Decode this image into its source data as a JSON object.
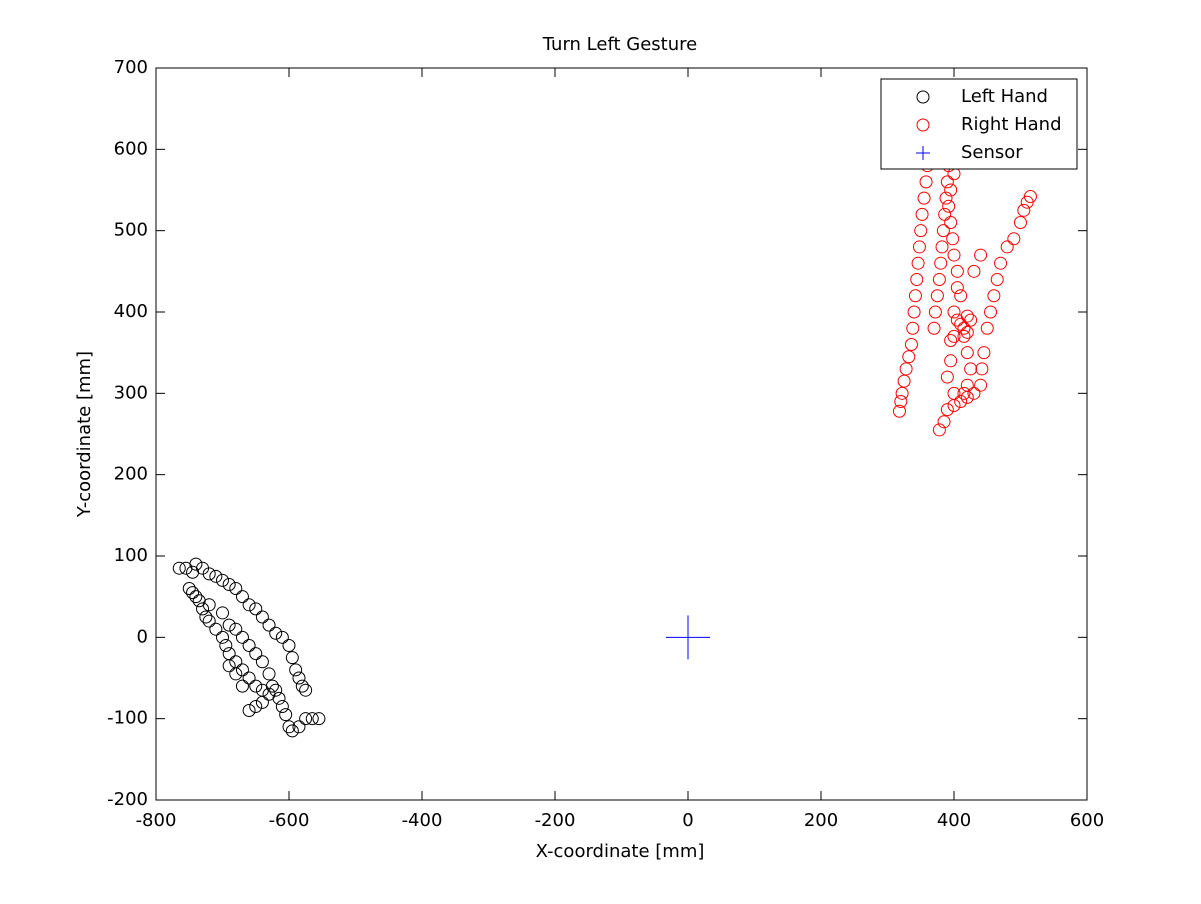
{
  "chart_data": {
    "type": "scatter",
    "title": "Turn Left Gesture",
    "x_label": "X-coordinate [mm]",
    "y_label": "Y-coordinate [mm]",
    "xlim": [
      -800,
      600
    ],
    "ylim": [
      -200,
      700
    ],
    "xticks": [
      -800,
      -600,
      -400,
      -200,
      0,
      200,
      400,
      600
    ],
    "yticks": [
      -200,
      -100,
      0,
      100,
      200,
      300,
      400,
      500,
      600,
      700
    ],
    "grid": false,
    "legend": "northeast",
    "series": [
      {
        "name": "Left Hand",
        "color": "#000000",
        "marker": "o",
        "x": [
          -765,
          -755,
          -745,
          -740,
          -730,
          -720,
          -710,
          -700,
          -690,
          -680,
          -670,
          -660,
          -650,
          -640,
          -630,
          -620,
          -610,
          -600,
          -595,
          -590,
          -585,
          -580,
          -575,
          -750,
          -745,
          -740,
          -735,
          -730,
          -725,
          -720,
          -710,
          -700,
          -695,
          -690,
          -680,
          -670,
          -660,
          -650,
          -640,
          -630,
          -625,
          -620,
          -615,
          -610,
          -605,
          -600,
          -595,
          -585,
          -575,
          -565,
          -555,
          -720,
          -700,
          -690,
          -680,
          -670,
          -660,
          -650,
          -640,
          -630,
          -640,
          -650,
          -660,
          -670,
          -680,
          -690
        ],
        "values": [
          85,
          85,
          80,
          90,
          85,
          78,
          75,
          70,
          65,
          60,
          50,
          40,
          35,
          25,
          15,
          5,
          0,
          -10,
          -25,
          -40,
          -50,
          -60,
          -65,
          60,
          55,
          50,
          45,
          35,
          25,
          20,
          10,
          0,
          -10,
          -20,
          -30,
          -40,
          -50,
          -60,
          -65,
          -70,
          -60,
          -65,
          -75,
          -85,
          -95,
          -110,
          -115,
          -110,
          -100,
          -100,
          -100,
          40,
          30,
          15,
          10,
          0,
          -10,
          -20,
          -30,
          -45,
          -80,
          -85,
          -90,
          -60,
          -45,
          -35
        ]
      },
      {
        "name": "Right Hand",
        "color": "#ff0000",
        "marker": "o",
        "x": [
          318,
          320,
          322,
          325,
          328,
          332,
          336,
          338,
          340,
          342,
          344,
          346,
          348,
          350,
          352,
          355,
          358,
          360,
          362,
          378,
          385,
          390,
          400,
          410,
          420,
          430,
          440,
          442,
          445,
          450,
          455,
          460,
          465,
          470,
          480,
          490,
          500,
          505,
          510,
          515,
          370,
          372,
          375,
          378,
          380,
          382,
          384,
          386,
          388,
          390,
          392,
          380,
          370,
          385,
          400,
          405,
          410,
          415,
          420,
          425,
          420,
          415,
          400,
          395,
          405,
          400,
          398,
          395,
          392,
          395,
          400,
          410,
          405,
          420,
          425,
          420,
          415,
          400,
          390,
          395,
          430,
          440
        ],
        "values": [
          278,
          290,
          300,
          315,
          330,
          345,
          360,
          380,
          400,
          420,
          440,
          460,
          480,
          500,
          520,
          540,
          560,
          580,
          600,
          255,
          265,
          280,
          285,
          290,
          295,
          300,
          310,
          330,
          350,
          380,
          400,
          420,
          440,
          460,
          480,
          490,
          510,
          525,
          535,
          542,
          380,
          400,
          420,
          440,
          460,
          480,
          500,
          520,
          540,
          560,
          580,
          600,
          620,
          620,
          400,
          390,
          385,
          380,
          395,
          390,
          375,
          370,
          370,
          365,
          450,
          470,
          490,
          510,
          530,
          550,
          570,
          420,
          430,
          350,
          330,
          310,
          300,
          300,
          320,
          340,
          450,
          470
        ]
      },
      {
        "name": "Sensor",
        "color": "#0000ff",
        "marker": "+",
        "x": [
          0
        ],
        "values": [
          0
        ]
      }
    ]
  }
}
